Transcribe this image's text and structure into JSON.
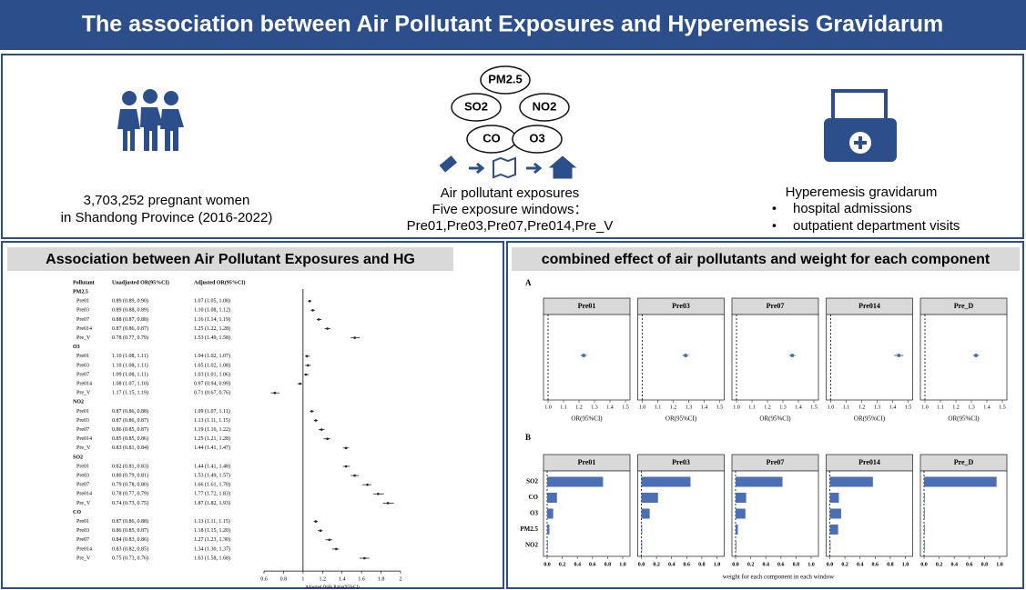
{
  "header": {
    "title": "The association between Air Pollutant Exposures and Hyperemesis Gravidarum"
  },
  "overview": {
    "population": [
      "3,703,252 pregnant women",
      "in Shandong Province (2016-2022)"
    ],
    "pollutants": [
      "PM2.5",
      "SO2",
      "NO2",
      "CO",
      "O3"
    ],
    "exposure": [
      "Air pollutant exposures",
      "Five exposure windows：",
      "Pre01,Pre03,Pre07,Pre014,Pre_V"
    ],
    "outcome": {
      "title": "Hyperemesis gravidarum",
      "items": [
        "hospital admissions",
        "outpatient department visits"
      ]
    }
  },
  "association": {
    "title": "Association between Air Pollutant Exposures and HG",
    "columns": [
      "Pollutant",
      "Unadjusted OR(95%CI)",
      "Adjusted OR(95%CI)"
    ],
    "groups": [
      {
        "name": "PM2.5",
        "rows": [
          {
            "window": "Pre01",
            "unadjusted": "0.89 (0.89, 0.90)",
            "adjusted": "1.07 (1.05, 1.08)"
          },
          {
            "window": "Pre03",
            "unadjusted": "0.89 (0.88, 0.89)",
            "adjusted": "1.10 (1.08, 1.12)"
          },
          {
            "window": "Pre07",
            "unadjusted": "0.88 (0.87, 0.88)",
            "adjusted": "1.16 (1.14, 1.19)"
          },
          {
            "window": "Pre014",
            "unadjusted": "0.87 (0.86, 0.87)",
            "adjusted": "1.25 (1.22, 1.28)"
          },
          {
            "window": "Pre_V",
            "unadjusted": "0.78 (0.77, 0.79)",
            "adjusted": "1.53 (1.49, 1.58)"
          }
        ]
      },
      {
        "name": "O3",
        "rows": [
          {
            "window": "Pre01",
            "unadjusted": "1.10 (1.08, 1.11)",
            "adjusted": "1.04 (1.02, 1.07)"
          },
          {
            "window": "Pre03",
            "unadjusted": "1.10 (1.08, 1.11)",
            "adjusted": "1.05 (1.02, 1.08)"
          },
          {
            "window": "Pre07",
            "unadjusted": "1.09 (1.08, 1.11)",
            "adjusted": "1.03 (1.01, 1.06)"
          },
          {
            "window": "Pre014",
            "unadjusted": "1.08 (1.07, 1.10)",
            "adjusted": "0.97 (0.94, 0.99)"
          },
          {
            "window": "Pre_V",
            "unadjusted": "1.17 (1.15, 1.19)",
            "adjusted": "0.71 (0.67, 0.76)"
          }
        ]
      },
      {
        "name": "NO2",
        "rows": [
          {
            "window": "Pre01",
            "unadjusted": "0.87 (0.86, 0.88)",
            "adjusted": "1.09 (1.07, 1.11)"
          },
          {
            "window": "Pre03",
            "unadjusted": "0.87 (0.86, 0.87)",
            "adjusted": "1.13 (1.11, 1.15)"
          },
          {
            "window": "Pre07",
            "unadjusted": "0.86 (0.85, 0.87)",
            "adjusted": "1.19 (1.16, 1.22)"
          },
          {
            "window": "Pre014",
            "unadjusted": "0.85 (0.85, 0.86)",
            "adjusted": "1.25 (1.21, 1.28)"
          },
          {
            "window": "Pre_V",
            "unadjusted": "0.83 (0.81, 0.84)",
            "adjusted": "1.44 (1.41, 1.47)"
          }
        ]
      },
      {
        "name": "SO2",
        "rows": [
          {
            "window": "Pre01",
            "unadjusted": "0.82 (0.81, 0.83)",
            "adjusted": "1.44 (1.41, 1.48)"
          },
          {
            "window": "Pre03",
            "unadjusted": "0.80 (0.79, 0.81)",
            "adjusted": "1.53 (1.49, 1.57)"
          },
          {
            "window": "Pre07",
            "unadjusted": "0.79 (0.78, 0.80)",
            "adjusted": "1.66 (1.61, 1.70)"
          },
          {
            "window": "Pre014",
            "unadjusted": "0.78 (0.77, 0.79)",
            "adjusted": "1.77 (1.72, 1.83)"
          },
          {
            "window": "Pre_V",
            "unadjusted": "0.74 (0.73, 0.75)",
            "adjusted": "1.87 (1.82, 1.93)"
          }
        ]
      },
      {
        "name": "CO",
        "rows": [
          {
            "window": "Pre01",
            "unadjusted": "0.87 (0.86, 0.88)",
            "adjusted": "1.13 (1.11, 1.15)"
          },
          {
            "window": "Pre03",
            "unadjusted": "0.86 (0.85, 0.87)",
            "adjusted": "1.18 (1.15, 1.20)"
          },
          {
            "window": "Pre07",
            "unadjusted": "0.84 (0.83, 0.86)",
            "adjusted": "1.27 (1.23, 1.30)"
          },
          {
            "window": "Pre014",
            "unadjusted": "0.83 (0.82, 0.85)",
            "adjusted": "1.34 (1.30, 1.37)"
          },
          {
            "window": "Pre_V",
            "unadjusted": "0.75 (0.73, 0.76)",
            "adjusted": "1.63 (1.58, 1.68)"
          }
        ]
      }
    ],
    "xlim": [
      0.6,
      2
    ],
    "xticks": [
      0.6,
      0.8,
      1,
      1.2,
      1.4,
      1.6,
      1.8,
      2
    ],
    "reference": 1,
    "xlabel": "Adjusted Odds Ratio(95%CI)",
    "color": "#222222"
  },
  "combined": {
    "title": "combined effect of air pollutants and weight for each component",
    "panel_a": {
      "label": "A",
      "windows": [
        {
          "name": "Pre01",
          "or": 1.23,
          "ci": [
            1.21,
            1.25
          ]
        },
        {
          "name": "Pre03",
          "or": 1.28,
          "ci": [
            1.26,
            1.3
          ]
        },
        {
          "name": "Pre07",
          "or": 1.36,
          "ci": [
            1.34,
            1.38
          ]
        },
        {
          "name": "Pre014",
          "or": 1.44,
          "ci": [
            1.41,
            1.47
          ]
        },
        {
          "name": "Pre_D",
          "or": 1.33,
          "ci": [
            1.31,
            1.35
          ]
        }
      ],
      "xlim": [
        1,
        1.5
      ],
      "xticks": [
        {
          "value": 1,
          "label": "1.0"
        },
        1.1,
        1.2,
        1.3,
        1.4,
        1.5
      ],
      "reference": 1,
      "xlabel": "OR(95%CI)",
      "color": "#4a6fb5"
    },
    "panel_b": {
      "label": "B",
      "categories": [
        "SO2",
        "CO",
        "O3",
        "PM2.5",
        "NO2"
      ],
      "windows": [
        {
          "name": "Pre01",
          "values": [
            0.74,
            0.13,
            0.08,
            0.03,
            0.01
          ]
        },
        {
          "name": "Pre03",
          "values": [
            0.65,
            0.22,
            0.11,
            0.01,
            0.01
          ]
        },
        {
          "name": "Pre07",
          "values": [
            0.62,
            0.14,
            0.13,
            0.03,
            0.01
          ]
        },
        {
          "name": "Pre014",
          "values": [
            0.57,
            0.12,
            0.15,
            0.11,
            0.01
          ]
        },
        {
          "name": "Pre_D",
          "values": [
            0.96,
            0.01,
            0.01,
            0.01,
            0.01
          ]
        }
      ],
      "xlim": [
        0,
        1
      ],
      "xticks": [
        {
          "value": 0,
          "label": "0.0"
        },
        0.2,
        0.4,
        0.6,
        0.8,
        {
          "value": 1,
          "label": "1.0"
        }
      ],
      "xlabel": "weight for each component  in each window",
      "color": "#4a6fb5"
    }
  }
}
